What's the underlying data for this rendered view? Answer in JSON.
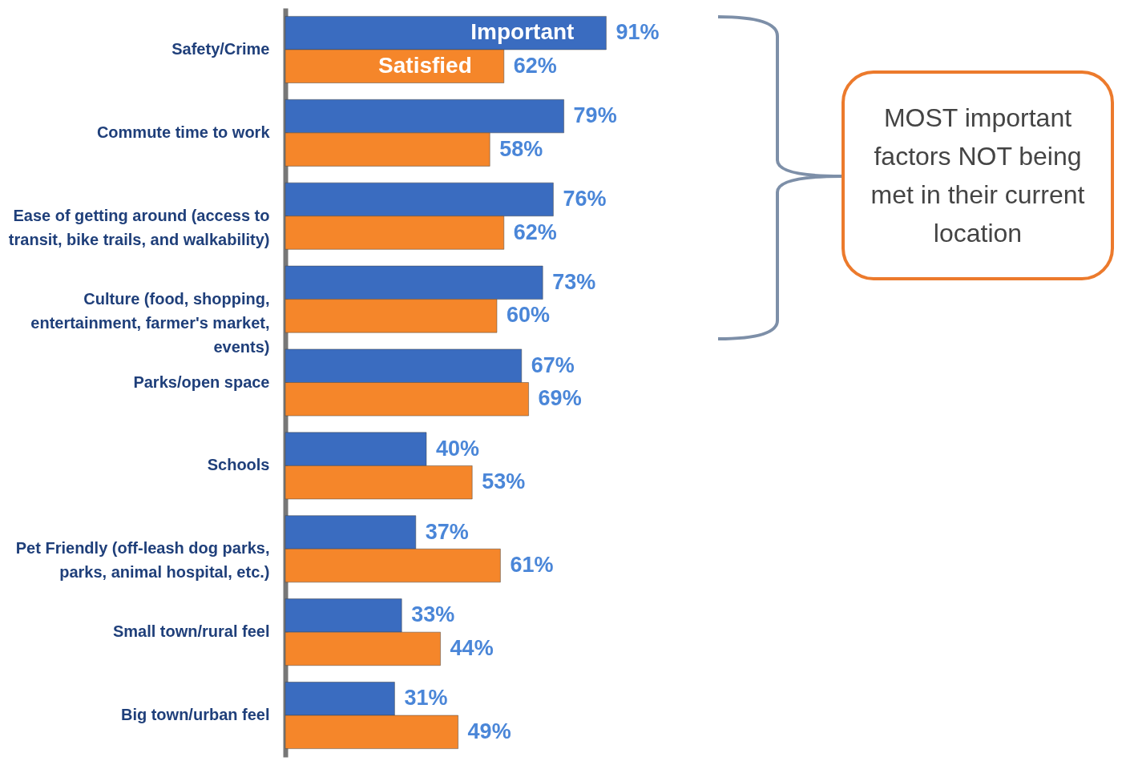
{
  "chart_data": {
    "type": "bar",
    "orientation": "horizontal",
    "categories": [
      "Safety/Crime",
      "Commute time to work",
      "Ease of getting around (access to transit, bike trails, and walkability)",
      "Culture (food, shopping, entertainment, farmer's market, events)",
      "Parks/open space",
      "Schools",
      "Pet Friendly (off-leash dog parks, parks, animal hospital, etc.)",
      "Small town/rural feel",
      "Big town/urban feel"
    ],
    "series": [
      {
        "name": "Important",
        "color": "#3a6cc0",
        "values": [
          91,
          79,
          76,
          73,
          67,
          40,
          37,
          33,
          31
        ],
        "value_labels": [
          "91%",
          "79%",
          "76%",
          "73%",
          "67%",
          "40%",
          "37%",
          "33%",
          "31%"
        ]
      },
      {
        "name": "Satisfied",
        "color": "#f5862a",
        "values": [
          62,
          58,
          62,
          60,
          69,
          53,
          61,
          44,
          49
        ],
        "value_labels": [
          "62%",
          "58%",
          "62%",
          "60%",
          "69%",
          "53%",
          "61%",
          "44%",
          "49%"
        ]
      }
    ],
    "grid": false,
    "annotations": [
      "MOST important factors NOT being met in their current location"
    ]
  }
}
